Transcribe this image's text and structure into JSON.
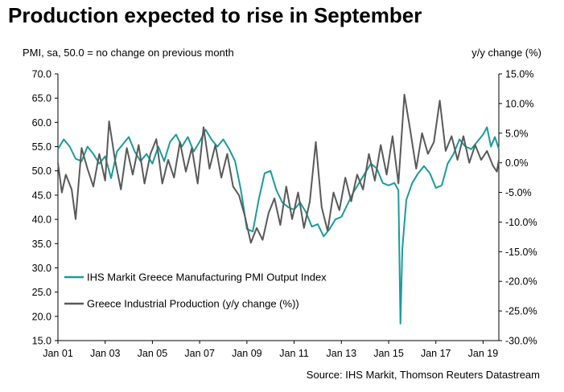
{
  "chart_data": {
    "type": "line",
    "title": "Production expected to rise in September",
    "ylabel_left": "PMI, sa, 50.0 = no change on previous month",
    "ylabel_right": "y/y change (%)",
    "x_ticks": [
      "Jan 01",
      "Jan 03",
      "Jan 05",
      "Jan 07",
      "Jan 09",
      "Jan 11",
      "Jan 13",
      "Jan 15",
      "Jan 17",
      "Jan 19"
    ],
    "y_left_ticks": [
      "70.0",
      "65.0",
      "60.0",
      "55.0",
      "50.0",
      "45.0",
      "40.0",
      "35.0",
      "30.0",
      "25.0",
      "20.0",
      "15.0"
    ],
    "y_right_ticks": [
      "15.0%",
      "10.0%",
      "5.0%",
      "0.0%",
      "-5.0%",
      "-10.0%",
      "-15.0%",
      "-20.0%",
      "-25.0%",
      "-30.0%"
    ],
    "ylim_left": [
      15,
      70
    ],
    "ylim_right": [
      -30,
      15
    ],
    "xlim": [
      "2001-01",
      "2019-09"
    ],
    "grid": false,
    "legend_position": "lower-left",
    "series": [
      {
        "name": "IHS Markit Greece Manufacturing PMI Output Index",
        "axis": "left",
        "color": "#1a9b9b",
        "points": [
          [
            "2001-01",
            54.5
          ],
          [
            "2001-04",
            56.5
          ],
          [
            "2001-07",
            55.0
          ],
          [
            "2001-10",
            52.5
          ],
          [
            "2002-01",
            52.0
          ],
          [
            "2002-04",
            55.0
          ],
          [
            "2002-07",
            53.5
          ],
          [
            "2002-10",
            51.5
          ],
          [
            "2003-01",
            53.0
          ],
          [
            "2003-04",
            48.5
          ],
          [
            "2003-07",
            54.0
          ],
          [
            "2003-10",
            55.5
          ],
          [
            "2004-01",
            57.0
          ],
          [
            "2004-04",
            54.0
          ],
          [
            "2004-07",
            52.0
          ],
          [
            "2004-10",
            53.5
          ],
          [
            "2005-01",
            51.5
          ],
          [
            "2005-04",
            55.0
          ],
          [
            "2005-07",
            52.0
          ],
          [
            "2005-10",
            56.0
          ],
          [
            "2006-01",
            57.5
          ],
          [
            "2006-04",
            55.0
          ],
          [
            "2006-07",
            57.0
          ],
          [
            "2006-10",
            54.0
          ],
          [
            "2007-01",
            56.0
          ],
          [
            "2007-04",
            58.5
          ],
          [
            "2007-07",
            56.5
          ],
          [
            "2007-10",
            55.0
          ],
          [
            "2008-01",
            56.5
          ],
          [
            "2008-04",
            54.5
          ],
          [
            "2008-07",
            52.0
          ],
          [
            "2008-10",
            46.0
          ],
          [
            "2009-01",
            38.0
          ],
          [
            "2009-04",
            37.5
          ],
          [
            "2009-07",
            44.0
          ],
          [
            "2009-10",
            49.5
          ],
          [
            "2010-01",
            50.0
          ],
          [
            "2010-04",
            46.0
          ],
          [
            "2010-07",
            43.5
          ],
          [
            "2010-10",
            42.5
          ],
          [
            "2011-01",
            42.0
          ],
          [
            "2011-04",
            43.5
          ],
          [
            "2011-07",
            41.5
          ],
          [
            "2011-10",
            38.5
          ],
          [
            "2012-01",
            39.0
          ],
          [
            "2012-04",
            36.5
          ],
          [
            "2012-07",
            38.0
          ],
          [
            "2012-10",
            40.0
          ],
          [
            "2013-01",
            40.5
          ],
          [
            "2013-04",
            43.0
          ],
          [
            "2013-07",
            45.5
          ],
          [
            "2013-10",
            47.5
          ],
          [
            "2014-01",
            49.5
          ],
          [
            "2014-04",
            51.5
          ],
          [
            "2014-07",
            50.5
          ],
          [
            "2014-10",
            47.5
          ],
          [
            "2015-01",
            47.0
          ],
          [
            "2015-04",
            47.5
          ],
          [
            "2015-06",
            46.0
          ],
          [
            "2015-07",
            18.5
          ],
          [
            "2015-08",
            34.0
          ],
          [
            "2015-10",
            44.0
          ],
          [
            "2016-01",
            47.5
          ],
          [
            "2016-04",
            49.5
          ],
          [
            "2016-07",
            51.0
          ],
          [
            "2016-10",
            49.5
          ],
          [
            "2017-01",
            46.5
          ],
          [
            "2017-04",
            47.0
          ],
          [
            "2017-07",
            51.5
          ],
          [
            "2017-10",
            53.5
          ],
          [
            "2018-01",
            56.5
          ],
          [
            "2018-04",
            55.0
          ],
          [
            "2018-07",
            54.5
          ],
          [
            "2018-10",
            56.0
          ],
          [
            "2019-01",
            57.5
          ],
          [
            "2019-03",
            59.0
          ],
          [
            "2019-05",
            55.0
          ],
          [
            "2019-07",
            57.0
          ],
          [
            "2019-09",
            54.5
          ]
        ]
      },
      {
        "name": "Greece Industrial Production (y/y change (%))",
        "axis": "right",
        "color": "#595959",
        "points": [
          [
            "2001-01",
            0.0
          ],
          [
            "2001-03",
            -5.0
          ],
          [
            "2001-05",
            -2.0
          ],
          [
            "2001-08",
            -4.5
          ],
          [
            "2001-10",
            -9.5
          ],
          [
            "2002-01",
            2.5
          ],
          [
            "2002-04",
            -1.0
          ],
          [
            "2002-07",
            -4.0
          ],
          [
            "2002-10",
            1.5
          ],
          [
            "2003-01",
            -3.0
          ],
          [
            "2003-03",
            7.0
          ],
          [
            "2003-06",
            0.5
          ],
          [
            "2003-09",
            -4.5
          ],
          [
            "2003-12",
            2.5
          ],
          [
            "2004-03",
            -2.0
          ],
          [
            "2004-06",
            3.0
          ],
          [
            "2004-09",
            -3.5
          ],
          [
            "2004-12",
            1.5
          ],
          [
            "2005-03",
            4.0
          ],
          [
            "2005-06",
            -3.5
          ],
          [
            "2005-09",
            0.5
          ],
          [
            "2005-12",
            -2.5
          ],
          [
            "2006-03",
            3.5
          ],
          [
            "2006-06",
            -1.5
          ],
          [
            "2006-09",
            2.5
          ],
          [
            "2006-12",
            -3.5
          ],
          [
            "2007-03",
            6.0
          ],
          [
            "2007-06",
            -1.0
          ],
          [
            "2007-09",
            3.0
          ],
          [
            "2007-12",
            -2.5
          ],
          [
            "2008-03",
            1.5
          ],
          [
            "2008-06",
            -4.0
          ],
          [
            "2008-09",
            -5.5
          ],
          [
            "2008-12",
            -9.0
          ],
          [
            "2009-03",
            -13.5
          ],
          [
            "2009-06",
            -11.0
          ],
          [
            "2009-09",
            -13.0
          ],
          [
            "2009-12",
            -8.5
          ],
          [
            "2010-03",
            -6.0
          ],
          [
            "2010-06",
            -10.5
          ],
          [
            "2010-09",
            -4.0
          ],
          [
            "2010-12",
            -9.5
          ],
          [
            "2011-03",
            -5.0
          ],
          [
            "2011-06",
            -11.0
          ],
          [
            "2011-09",
            -6.5
          ],
          [
            "2011-12",
            3.5
          ],
          [
            "2012-03",
            -7.5
          ],
          [
            "2012-06",
            -11.5
          ],
          [
            "2012-09",
            -5.0
          ],
          [
            "2012-12",
            -8.0
          ],
          [
            "2013-03",
            -2.5
          ],
          [
            "2013-06",
            -6.5
          ],
          [
            "2013-09",
            -2.0
          ],
          [
            "2013-12",
            -4.5
          ],
          [
            "2014-03",
            1.5
          ],
          [
            "2014-06",
            -3.0
          ],
          [
            "2014-09",
            3.0
          ],
          [
            "2014-12",
            -2.0
          ],
          [
            "2015-03",
            4.5
          ],
          [
            "2015-06",
            -3.5
          ],
          [
            "2015-09",
            11.5
          ],
          [
            "2015-12",
            5.5
          ],
          [
            "2016-03",
            -1.0
          ],
          [
            "2016-06",
            5.0
          ],
          [
            "2016-09",
            1.5
          ],
          [
            "2016-12",
            3.5
          ],
          [
            "2017-03",
            10.5
          ],
          [
            "2017-06",
            2.0
          ],
          [
            "2017-09",
            4.5
          ],
          [
            "2017-12",
            0.5
          ],
          [
            "2018-03",
            4.5
          ],
          [
            "2018-06",
            0.0
          ],
          [
            "2018-09",
            3.0
          ],
          [
            "2018-12",
            0.5
          ],
          [
            "2019-03",
            2.0
          ],
          [
            "2019-06",
            -0.5
          ],
          [
            "2019-08",
            -1.5
          ],
          [
            "2019-09",
            0.5
          ]
        ]
      }
    ],
    "source": "Source: IHS Markit, Thomson Reuters Datastream"
  }
}
